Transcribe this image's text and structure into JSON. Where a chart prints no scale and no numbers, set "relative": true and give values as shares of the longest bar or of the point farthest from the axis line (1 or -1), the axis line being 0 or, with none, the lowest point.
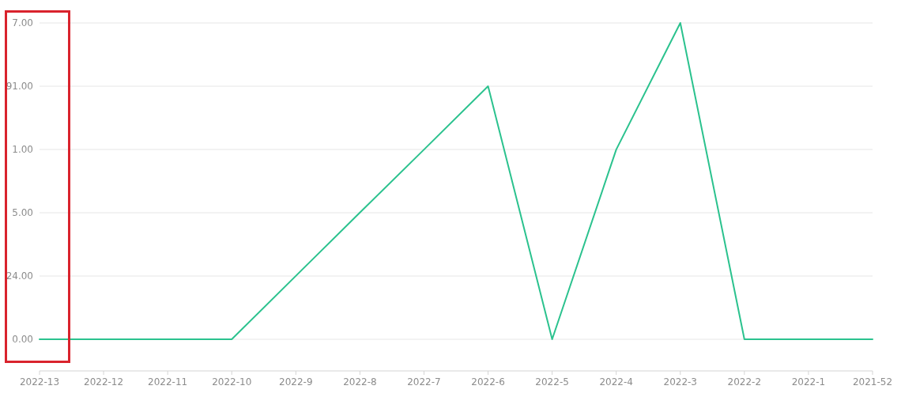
{
  "chart_data": {
    "type": "line",
    "categories": [
      "2022-13",
      "2022-12",
      "2022-11",
      "2022-10",
      "2022-9",
      "2022-8",
      "2022-7",
      "2022-6",
      "2022-5",
      "2022-4",
      "2022-3",
      "2022-2",
      "2022-1",
      "2021-52"
    ],
    "y_categories": [
      "7.00",
      "91.00",
      "1.00",
      "5.00",
      "24.00",
      "0.00"
    ],
    "relative": true,
    "series": [
      {
        "color": "#2bc28e",
        "values": [
          0.091,
          0.091,
          0.091,
          0.091,
          0.273,
          0.455,
          0.636,
          0.818,
          0.091,
          0.636,
          1,
          0.091,
          0.091,
          0.091
        ]
      }
    ],
    "grid": "y"
  }
}
